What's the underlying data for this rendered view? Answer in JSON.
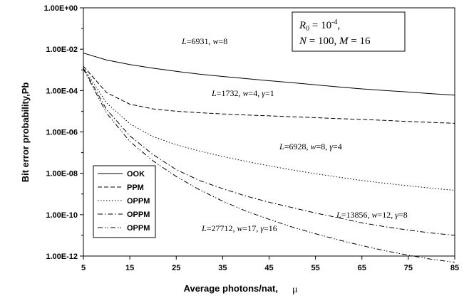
{
  "chart_data": {
    "type": "line",
    "xlabel": "Average photons/nat,",
    "xlabel_symbol": "μ",
    "ylabel": "Bit error probability,Pb",
    "xlim": [
      5,
      85
    ],
    "ylim_log10": [
      -12,
      0
    ],
    "log_y": true,
    "x_ticks": [
      5,
      15,
      25,
      35,
      45,
      55,
      65,
      75,
      85
    ],
    "y_ticks": [
      {
        "exp": 0,
        "label": "1.00E+00"
      },
      {
        "exp": -2,
        "label": "1.00E-02"
      },
      {
        "exp": -4,
        "label": "1.00E-04"
      },
      {
        "exp": -6,
        "label": "1.00E-06"
      },
      {
        "exp": -8,
        "label": "1.00E-08"
      },
      {
        "exp": -10,
        "label": "1.00E-10"
      },
      {
        "exp": -12,
        "label": "1.00E-12"
      }
    ],
    "grid": false,
    "legend_position": "bottom-left",
    "info_box": {
      "line1": "R0 = 10^-4,",
      "line2": "N = 100, M = 16"
    },
    "x": [
      5,
      10,
      15,
      20,
      25,
      30,
      35,
      40,
      45,
      50,
      55,
      60,
      65,
      70,
      75,
      80,
      85
    ],
    "series": [
      {
        "name": "OOK",
        "dash": "solid",
        "annotation": "L=6931, w=8",
        "values": [
          0.0065,
          0.003,
          0.0018,
          0.0012,
          0.00085,
          0.00062,
          0.00048,
          0.00038,
          0.0003,
          0.00024,
          0.00019,
          0.00015,
          0.00012,
          0.0001,
          8.5e-05,
          7e-05,
          6e-05
        ]
      },
      {
        "name": "PPM",
        "dash": "dash",
        "annotation": "L=1732, w=4, γ=1",
        "values": [
          0.0015,
          8e-05,
          2.2e-05,
          1.3e-05,
          1e-05,
          8.5e-06,
          7.4e-06,
          6.6e-06,
          6e-06,
          5.4e-06,
          4.9e-06,
          4.4e-06,
          4e-06,
          3.6e-06,
          3.2e-06,
          2.9e-06,
          2.6e-06
        ]
      },
      {
        "name": "OPPM",
        "dash": "dot",
        "annotation": "L=6928, w=8, γ=4",
        "values": [
          0.0013,
          2.5e-05,
          2.5e-06,
          6e-07,
          2.4e-07,
          1.2e-07,
          6.5e-08,
          3.8e-08,
          2.3e-08,
          1.45e-08,
          9.5e-09,
          6.5e-09,
          4.5e-09,
          3.3e-09,
          2.5e-09,
          1.9e-09,
          1.5e-09
        ]
      },
      {
        "name": "OPPM",
        "dash": "dashdot",
        "annotation": "L=13856, w=12, γ=8",
        "values": [
          0.0012,
          1.2e-05,
          6.5e-07,
          8e-08,
          1.5e-08,
          4.5e-09,
          1.8e-09,
          8e-10,
          4e-10,
          2.2e-10,
          1.2e-10,
          7e-11,
          4e-11,
          2.6e-11,
          1.8e-11,
          1.3e-11,
          1e-11
        ]
      },
      {
        "name": "OPPM",
        "dash": "dashdotdot",
        "annotation": "L=27712, w=17, γ=16",
        "values": [
          0.0011,
          8e-06,
          3.5e-07,
          4e-08,
          7e-09,
          1.6e-09,
          4.5e-10,
          1.5e-10,
          6e-11,
          2.5e-11,
          1.2e-11,
          6e-12,
          3.2e-12,
          1.8e-12,
          1.1e-12,
          7e-13,
          5e-13
        ]
      }
    ]
  }
}
